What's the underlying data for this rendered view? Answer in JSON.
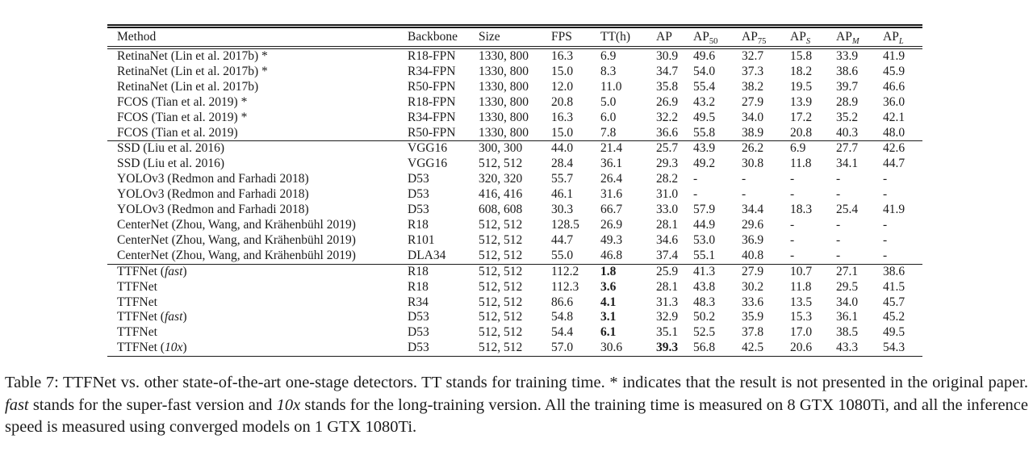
{
  "page": {
    "background_color": "#ffffff",
    "text_color": "#1b1b1b"
  },
  "table": {
    "columns": [
      {
        "t": "Method"
      },
      {
        "t": "Backbone"
      },
      {
        "t": "Size"
      },
      {
        "t": "FPS"
      },
      {
        "t": "TT(h)"
      },
      {
        "t": "AP"
      },
      {
        "t": "AP",
        "sub": "50"
      },
      {
        "t": "AP",
        "sub": "75"
      },
      {
        "t": "AP",
        "sub": "S",
        "sub_italic": true
      },
      {
        "t": "AP",
        "sub": "M",
        "sub_italic": true
      },
      {
        "t": "AP",
        "sub": "L",
        "sub_italic": true
      }
    ],
    "groups": [
      {
        "rows": [
          {
            "method": [
              {
                "t": "RetinaNet (Lin et al. 2017b) *"
              }
            ],
            "cells": [
              "R18-FPN",
              "1330, 800",
              "16.3",
              "6.9",
              "30.9",
              "49.6",
              "32.7",
              "15.8",
              "33.9",
              "41.9"
            ]
          },
          {
            "method": [
              {
                "t": "RetinaNet (Lin et al. 2017b) *"
              }
            ],
            "cells": [
              "R34-FPN",
              "1330, 800",
              "15.0",
              "8.3",
              "34.7",
              "54.0",
              "37.3",
              "18.2",
              "38.6",
              "45.9"
            ]
          },
          {
            "method": [
              {
                "t": "RetinaNet (Lin et al. 2017b)"
              }
            ],
            "cells": [
              "R50-FPN",
              "1330, 800",
              "12.0",
              "11.0",
              "35.8",
              "55.4",
              "38.2",
              "19.5",
              "39.7",
              "46.6"
            ]
          },
          {
            "method": [
              {
                "t": "FCOS (Tian et al. 2019) *"
              }
            ],
            "cells": [
              "R18-FPN",
              "1330, 800",
              "20.8",
              "5.0",
              "26.9",
              "43.2",
              "27.9",
              "13.9",
              "28.9",
              "36.0"
            ]
          },
          {
            "method": [
              {
                "t": "FCOS (Tian et al. 2019) *"
              }
            ],
            "cells": [
              "R34-FPN",
              "1330, 800",
              "16.3",
              "6.0",
              "32.2",
              "49.5",
              "34.0",
              "17.2",
              "35.2",
              "42.1"
            ]
          },
          {
            "method": [
              {
                "t": "FCOS (Tian et al. 2019)"
              }
            ],
            "cells": [
              "R50-FPN",
              "1330, 800",
              "15.0",
              "7.8",
              "36.6",
              "55.8",
              "38.9",
              "20.8",
              "40.3",
              "48.0"
            ]
          }
        ]
      },
      {
        "rows": [
          {
            "method": [
              {
                "t": "SSD (Liu et al. 2016)"
              }
            ],
            "cells": [
              "VGG16",
              "300, 300",
              "44.0",
              "21.4",
              "25.7",
              "43.9",
              "26.2",
              "6.9",
              "27.7",
              "42.6"
            ]
          },
          {
            "method": [
              {
                "t": "SSD (Liu et al. 2016)"
              }
            ],
            "cells": [
              "VGG16",
              "512, 512",
              "28.4",
              "36.1",
              "29.3",
              "49.2",
              "30.8",
              "11.8",
              "34.1",
              "44.7"
            ]
          },
          {
            "method": [
              {
                "t": "YOLOv3 (Redmon and Farhadi 2018)"
              }
            ],
            "cells": [
              "D53",
              "320, 320",
              "55.7",
              "26.4",
              "28.2",
              "-",
              "-",
              "-",
              "-",
              "-"
            ]
          },
          {
            "method": [
              {
                "t": "YOLOv3 (Redmon and Farhadi 2018)"
              }
            ],
            "cells": [
              "D53",
              "416, 416",
              "46.1",
              "31.6",
              "31.0",
              "-",
              "-",
              "-",
              "-",
              "-"
            ]
          },
          {
            "method": [
              {
                "t": "YOLOv3 (Redmon and Farhadi 2018)"
              }
            ],
            "cells": [
              "D53",
              "608, 608",
              "30.3",
              "66.7",
              "33.0",
              "57.9",
              "34.4",
              "18.3",
              "25.4",
              "41.9"
            ]
          },
          {
            "method": [
              {
                "t": "CenterNet (Zhou, Wang, and Krähenbühl 2019)"
              }
            ],
            "cells": [
              "R18",
              "512, 512",
              "128.5",
              "26.9",
              "28.1",
              "44.9",
              "29.6",
              "-",
              "-",
              "-"
            ]
          },
          {
            "method": [
              {
                "t": "CenterNet (Zhou, Wang, and Krähenbühl 2019)"
              }
            ],
            "cells": [
              "R101",
              "512, 512",
              "44.7",
              "49.3",
              "34.6",
              "53.0",
              "36.9",
              "-",
              "-",
              "-"
            ]
          },
          {
            "method": [
              {
                "t": "CenterNet (Zhou, Wang, and Krähenbühl 2019)"
              }
            ],
            "cells": [
              "DLA34",
              "512, 512",
              "55.0",
              "46.8",
              "37.4",
              "55.1",
              "40.8",
              "-",
              "-",
              "-"
            ]
          }
        ]
      },
      {
        "rows": [
          {
            "method": [
              {
                "t": "TTFNet ("
              },
              {
                "t": "fast",
                "i": true
              },
              {
                "t": ")"
              }
            ],
            "cells": [
              "R18",
              "512, 512",
              "112.2",
              {
                "v": "1.8",
                "b": true
              },
              "25.9",
              "41.3",
              "27.9",
              "10.7",
              "27.1",
              "38.6"
            ]
          },
          {
            "method": [
              {
                "t": "TTFNet"
              }
            ],
            "cells": [
              "R18",
              "512, 512",
              "112.3",
              {
                "v": "3.6",
                "b": true
              },
              "28.1",
              "43.8",
              "30.2",
              "11.8",
              "29.5",
              "41.5"
            ]
          },
          {
            "method": [
              {
                "t": "TTFNet"
              }
            ],
            "cells": [
              "R34",
              "512, 512",
              "86.6",
              {
                "v": "4.1",
                "b": true
              },
              "31.3",
              "48.3",
              "33.6",
              "13.5",
              "34.0",
              "45.7"
            ]
          },
          {
            "method": [
              {
                "t": "TTFNet ("
              },
              {
                "t": "fast",
                "i": true
              },
              {
                "t": ")"
              }
            ],
            "cells": [
              "D53",
              "512, 512",
              "54.8",
              {
                "v": "3.1",
                "b": true
              },
              "32.9",
              "50.2",
              "35.9",
              "15.3",
              "36.1",
              "45.2"
            ]
          },
          {
            "method": [
              {
                "t": "TTFNet"
              }
            ],
            "cells": [
              "D53",
              "512, 512",
              "54.4",
              {
                "v": "6.1",
                "b": true
              },
              "35.1",
              "52.5",
              "37.8",
              "17.0",
              "38.5",
              "49.5"
            ]
          },
          {
            "method": [
              {
                "t": "TTFNet ("
              },
              {
                "t": "10x",
                "i": true
              },
              {
                "t": ")"
              }
            ],
            "cells": [
              "D53",
              "512, 512",
              "57.0",
              "30.6",
              {
                "v": "39.3",
                "b": true
              },
              "56.8",
              "42.5",
              "20.6",
              "43.3",
              "54.3"
            ]
          }
        ]
      }
    ]
  },
  "caption": {
    "parts": [
      {
        "t": "Table 7: TTFNet vs. other state-of-the-art one-stage detectors. TT stands for training time. * indicates that the result is not presented in the original paper. "
      },
      {
        "t": "fast",
        "i": true
      },
      {
        "t": " stands for the super-fast version and "
      },
      {
        "t": "10x",
        "i": true
      },
      {
        "t": " stands for the long-training version. All the training time is measured on 8 GTX 1080Ti, and all the inference speed is measured using converged models on 1 GTX 1080Ti."
      }
    ]
  }
}
